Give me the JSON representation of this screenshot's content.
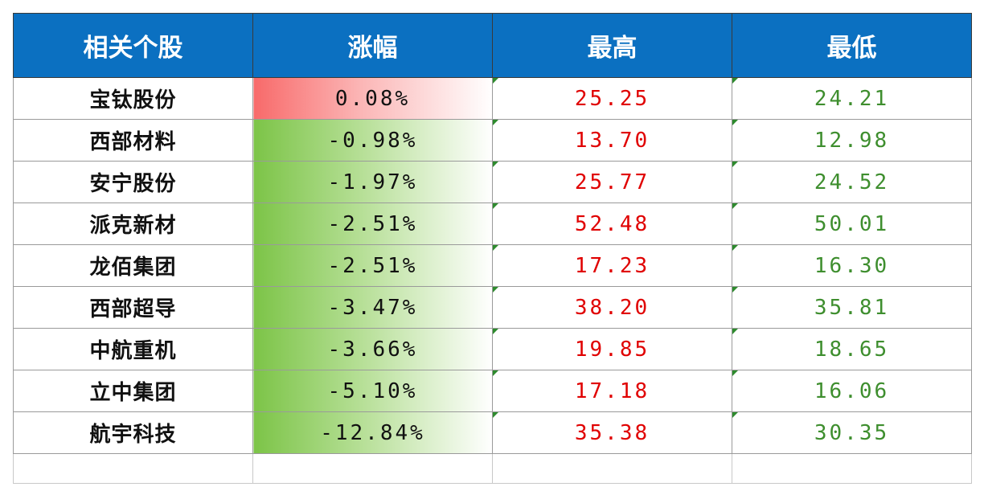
{
  "header": {
    "col_stock": "相关个股",
    "col_change": "涨幅",
    "col_high": "最高",
    "col_low": "最低"
  },
  "rows": [
    {
      "name": "宝钛股份",
      "change": "0.08%",
      "high": "25.25",
      "low": "24.21"
    },
    {
      "name": "西部材料",
      "change": "-0.98%",
      "high": "13.70",
      "low": "12.98"
    },
    {
      "name": "安宁股份",
      "change": "-1.97%",
      "high": "25.77",
      "low": "24.52"
    },
    {
      "name": "派克新材",
      "change": "-2.51%",
      "high": "52.48",
      "low": "50.01"
    },
    {
      "name": "龙佰集团",
      "change": "-2.51%",
      "high": "17.23",
      "low": "16.30"
    },
    {
      "name": "西部超导",
      "change": "-3.47%",
      "high": "38.20",
      "low": "35.81"
    },
    {
      "name": "中航重机",
      "change": "-3.66%",
      "high": "19.85",
      "low": "18.65"
    },
    {
      "name": "立中集团",
      "change": "-5.10%",
      "high": "17.18",
      "low": "16.06"
    },
    {
      "name": "航宇科技",
      "change": "-12.84%",
      "high": "35.38",
      "low": "30.35"
    }
  ],
  "colors": {
    "header_bg": "#0b70c1",
    "high_text": "#e00000",
    "low_text": "#3e8e2e",
    "positive_bar": "#f86a6a",
    "negative_bar": "#7cc447"
  }
}
